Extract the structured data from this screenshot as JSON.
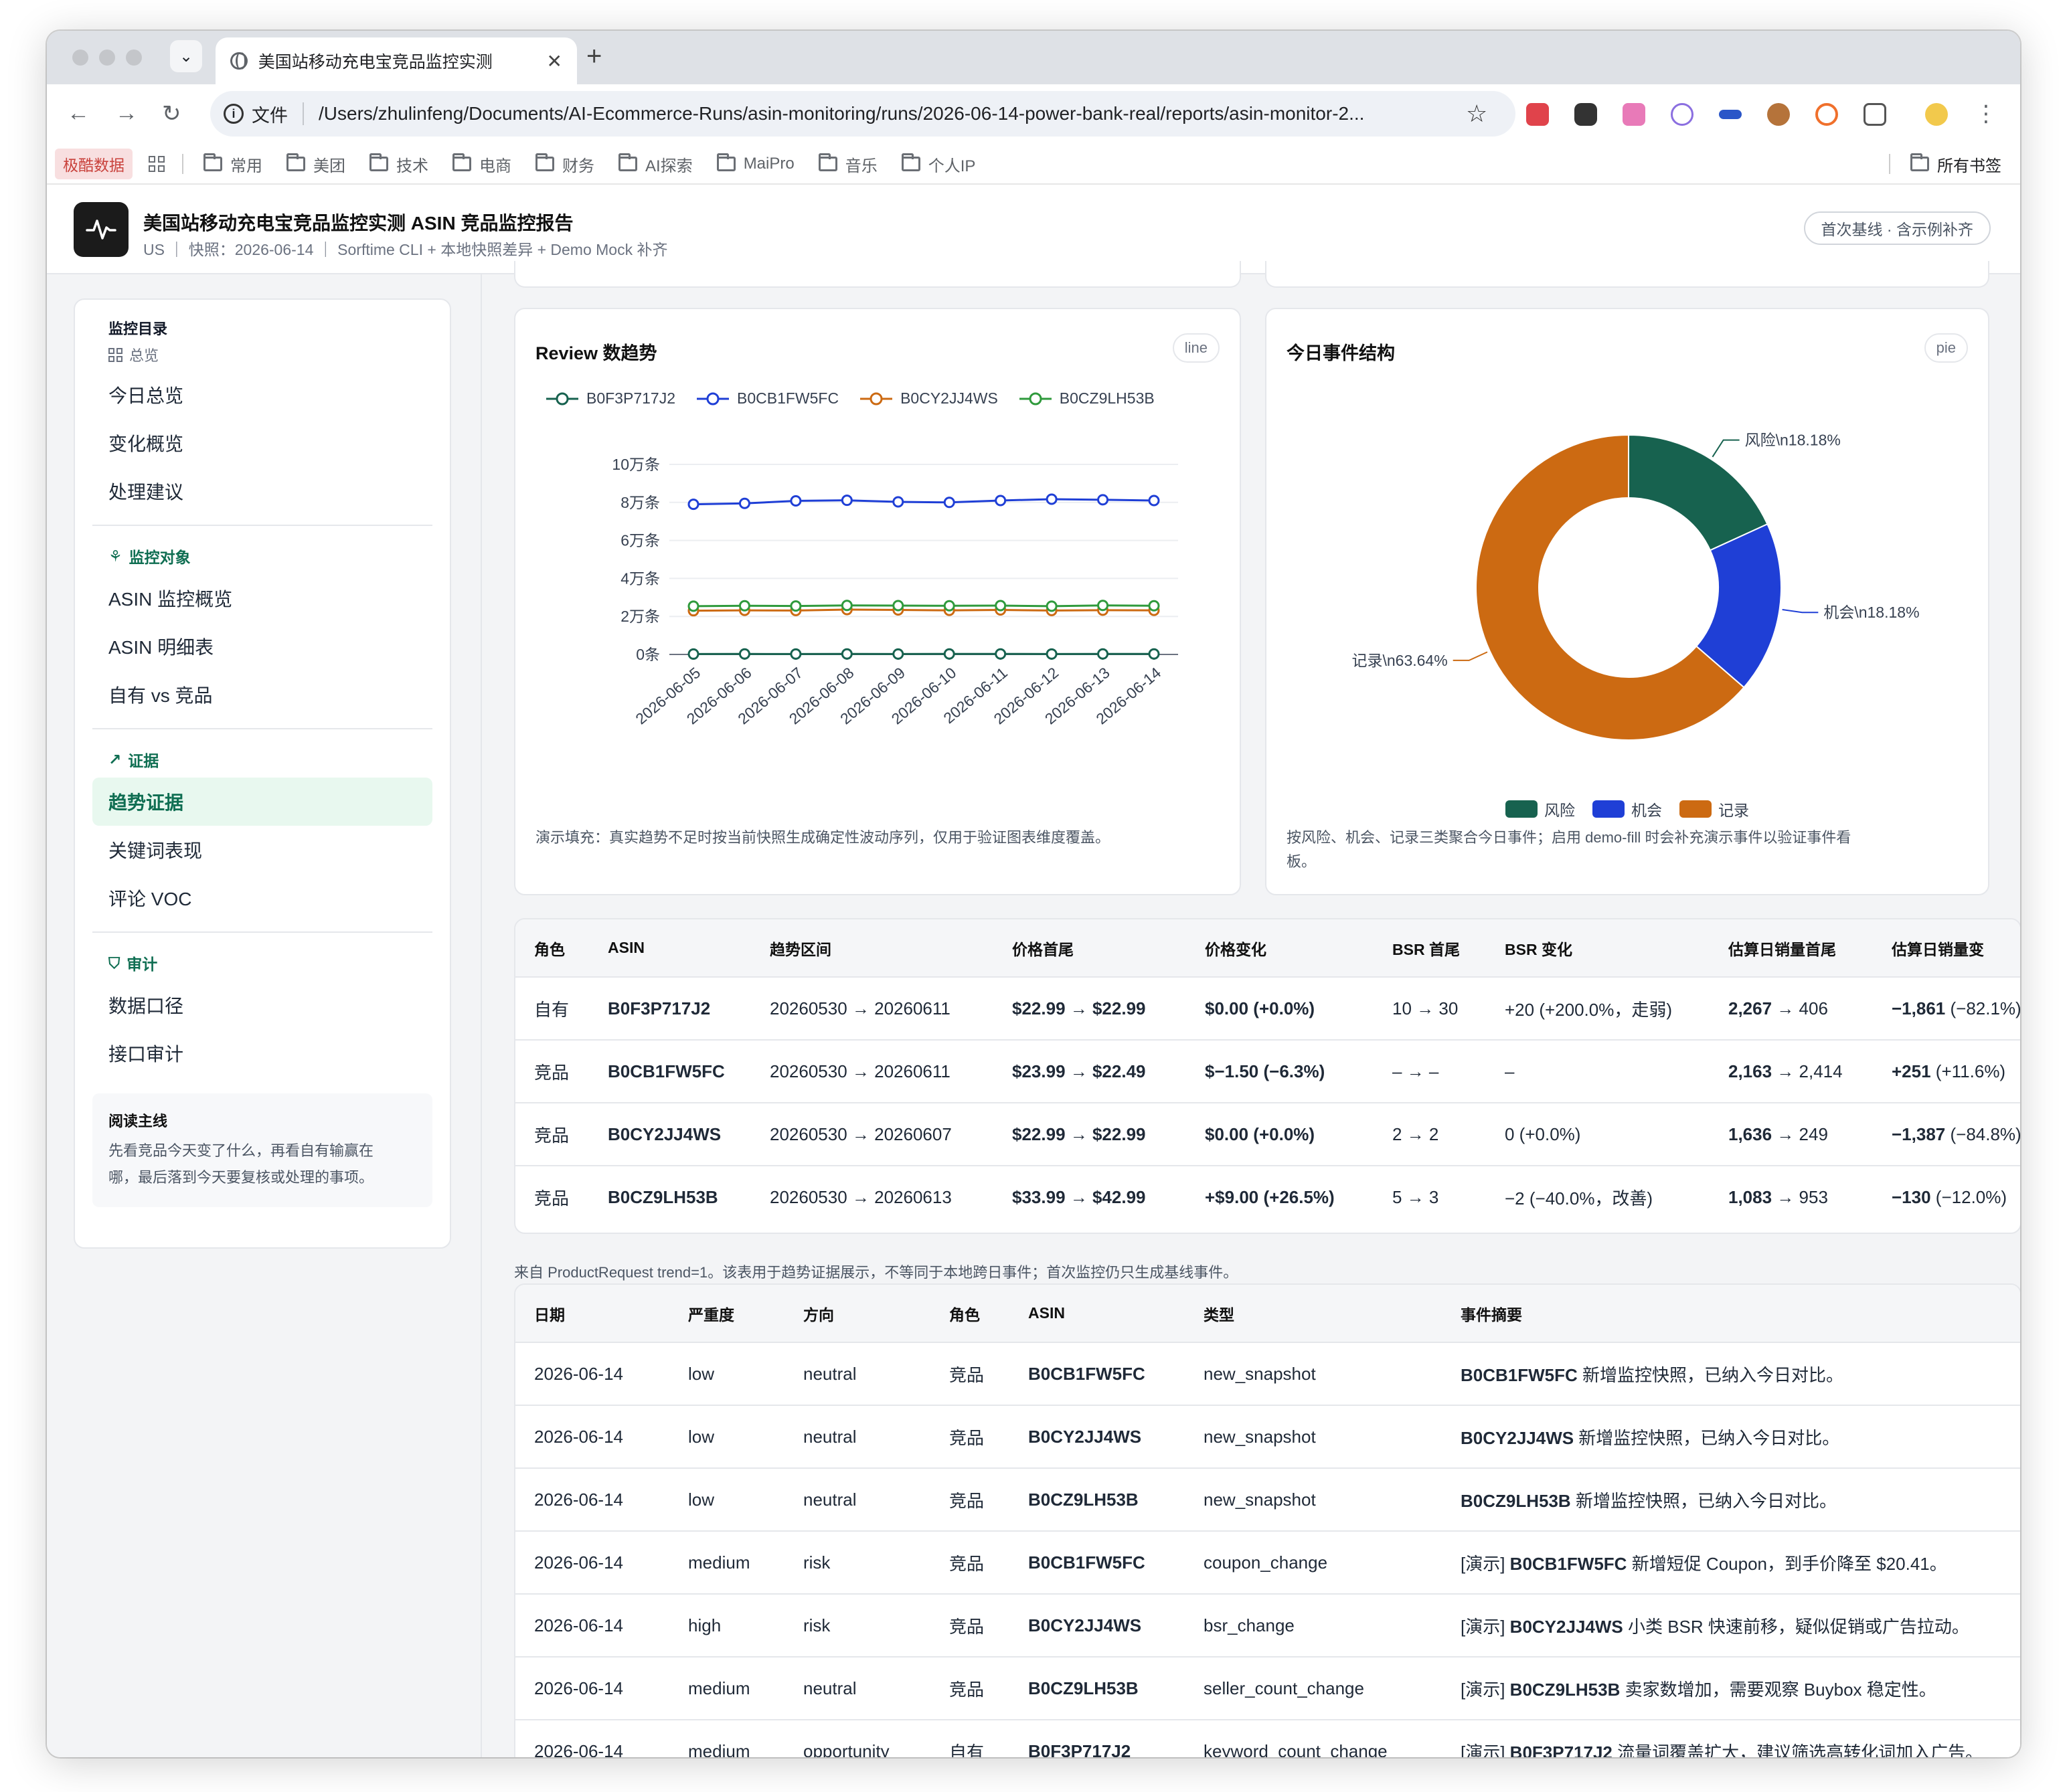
{
  "browser": {
    "tab_title": "美国站移动充电宝竞品监控实测",
    "scheme_label": "文件",
    "url": "/Users/zhulinfeng/Documents/AI-Ecommerce-Runs/asin-monitoring/runs/2026-06-14-power-bank-real/reports/asin-monitor-2...",
    "bookmark_pill": "极酷数据",
    "bookmarks": [
      "常用",
      "美团",
      "技术",
      "电商",
      "财务",
      "AI探索",
      "MaiPro",
      "音乐",
      "个人IP"
    ],
    "all_bookmarks": "所有书签"
  },
  "header": {
    "title": "美国站移动充电宝竞品监控实测 ASIN 竞品监控报告",
    "subtitle": "US ｜ 快照：2026-06-14 ｜ Sorftime CLI + 本地快照差异 + Demo Mock 补齐",
    "badge": "首次基线 · 含示例补齐"
  },
  "sidebar": {
    "heading": "监控目录",
    "overview_label": "总览",
    "overview_items": [
      "今日总览",
      "变化概览",
      "处理建议"
    ],
    "targets_label": "监控对象",
    "targets_items": [
      "ASIN 监控概览",
      "ASIN 明细表",
      "自有 vs 竞品"
    ],
    "evidence_label": "证据",
    "evidence_items": [
      "趋势证据",
      "关键词表现",
      "评论 VOC"
    ],
    "audit_label": "审计",
    "audit_items": [
      "数据口径",
      "接口审计"
    ],
    "note_title": "阅读主线",
    "note_text_1": "先看竞品今天变了什么，再看自有输赢在",
    "note_text_2": "哪，最后落到今天要复核或处理的事项。"
  },
  "review_chart": {
    "title": "Review 数趋势",
    "pill": "line",
    "caption": "演示填充：真实趋势不足时按当前快照生成确定性波动序列，仅用于验证图表维度覆盖。"
  },
  "event_chart": {
    "title": "今日事件结构",
    "pill": "pie",
    "caption_1": "按风险、机会、记录三类聚合今日事件；启用 demo-fill 时会补充演示事件以验证事件看",
    "caption_2": "板。"
  },
  "chart_data": [
    {
      "type": "line",
      "title": "Review 数趋势",
      "x": [
        "2026-06-05",
        "2026-06-06",
        "2026-06-07",
        "2026-06-08",
        "2026-06-09",
        "2026-06-10",
        "2026-06-11",
        "2026-06-12",
        "2026-06-13",
        "2026-06-14"
      ],
      "yticks": [
        "0条",
        "2万条",
        "4万条",
        "6万条",
        "8万条",
        "10万条"
      ],
      "ylim": [
        0,
        100000
      ],
      "series": [
        {
          "name": "B0F3P717J2",
          "color": "#17624f",
          "values": [
            200,
            250,
            220,
            260,
            230,
            250,
            270,
            240,
            260,
            250
          ]
        },
        {
          "name": "B0CB1FW5FC",
          "color": "#1f3fd6",
          "values": [
            79000,
            79500,
            80800,
            81100,
            80300,
            80000,
            81000,
            81700,
            81400,
            81000
          ]
        },
        {
          "name": "B0CY2JJ4WS",
          "color": "#cc6a12",
          "values": [
            23000,
            23200,
            23100,
            23600,
            23400,
            23200,
            23400,
            23100,
            23300,
            23200
          ]
        },
        {
          "name": "B0CZ9LH53B",
          "color": "#2f9a3c",
          "values": [
            25400,
            25600,
            25500,
            25800,
            25700,
            25600,
            25700,
            25400,
            25800,
            25600
          ]
        }
      ],
      "legend": "top"
    },
    {
      "type": "pie",
      "title": "今日事件结构",
      "slices": [
        {
          "name": "风险",
          "label": "风险\\n18.18%",
          "value": 18.18,
          "color": "#17624f"
        },
        {
          "name": "机会",
          "label": "机会\\n18.18%",
          "value": 18.18,
          "color": "#1f3fd6"
        },
        {
          "name": "记录",
          "label": "记录\\n63.64%",
          "value": 63.64,
          "color": "#cc6a12"
        }
      ],
      "legend": "bottom"
    }
  ],
  "trend_table": {
    "headers": [
      "角色",
      "ASIN",
      "趋势区间",
      "价格首尾",
      "价格变化",
      "BSR 首尾",
      "BSR 变化",
      "估算日销量首尾",
      "估算日销量变"
    ],
    "rows": [
      [
        "自有",
        "B0F3P717J2",
        "20260530 → 20260611",
        "$22.99 → $22.99",
        "$0.00 (+0.0%)",
        "10 → 30",
        "+20 (+200.0%，走弱)",
        "2,267 → 406",
        "−1,861 (−82.1%)"
      ],
      [
        "竞品",
        "B0CB1FW5FC",
        "20260530 → 20260611",
        "$23.99 → $22.49",
        "$−1.50 (−6.3%)",
        "– → –",
        "–",
        "2,163 → 2,414",
        "+251 (+11.6%)"
      ],
      [
        "竞品",
        "B0CY2JJ4WS",
        "20260530 → 20260607",
        "$22.99 → $22.99",
        "$0.00 (+0.0%)",
        "2 → 2",
        "0 (+0.0%)",
        "1,636 → 249",
        "−1,387 (−84.8%)"
      ],
      [
        "竞品",
        "B0CZ9LH53B",
        "20260530 → 20260613",
        "$33.99 → $42.99",
        "+$9.00 (+26.5%)",
        "5 → 3",
        "−2 (−40.0%，改善)",
        "1,083 → 953",
        "−130 (−12.0%)"
      ]
    ],
    "footnote": "来自 ProductRequest trend=1。该表用于趋势证据展示，不等同于本地跨日事件；首次监控仍只生成基线事件。"
  },
  "event_table": {
    "headers": [
      "日期",
      "严重度",
      "方向",
      "角色",
      "ASIN",
      "类型",
      "事件摘要"
    ],
    "rows": [
      [
        "2026-06-14",
        "low",
        "neutral",
        "竞品",
        "B0CB1FW5FC",
        "new_snapshot",
        "",
        "B0CB1FW5FC",
        " 新增监控快照，已纳入今日对比。"
      ],
      [
        "2026-06-14",
        "low",
        "neutral",
        "竞品",
        "B0CY2JJ4WS",
        "new_snapshot",
        "",
        "B0CY2JJ4WS",
        " 新增监控快照，已纳入今日对比。"
      ],
      [
        "2026-06-14",
        "low",
        "neutral",
        "竞品",
        "B0CZ9LH53B",
        "new_snapshot",
        "",
        "B0CZ9LH53B",
        " 新增监控快照，已纳入今日对比。"
      ],
      [
        "2026-06-14",
        "medium",
        "risk",
        "竞品",
        "B0CB1FW5FC",
        "coupon_change",
        "[演示] ",
        "B0CB1FW5FC",
        " 新增短促 Coupon，到手价降至 $20.41。"
      ],
      [
        "2026-06-14",
        "high",
        "risk",
        "竞品",
        "B0CY2JJ4WS",
        "bsr_change",
        "[演示] ",
        "B0CY2JJ4WS",
        " 小类 BSR 快速前移，疑似促销或广告拉动。"
      ],
      [
        "2026-06-14",
        "medium",
        "neutral",
        "竞品",
        "B0CZ9LH53B",
        "seller_count_change",
        "[演示] ",
        "B0CZ9LH53B",
        " 卖家数增加，需要观察 Buybox 稳定性。"
      ],
      [
        "2026-06-14",
        "medium",
        "opportunity",
        "自有",
        "B0F3P717J2",
        "keyword_count_change",
        "[演示] ",
        "B0F3P717J2",
        " 流量词覆盖扩大，建议筛选高转化词加入广告。"
      ]
    ]
  }
}
